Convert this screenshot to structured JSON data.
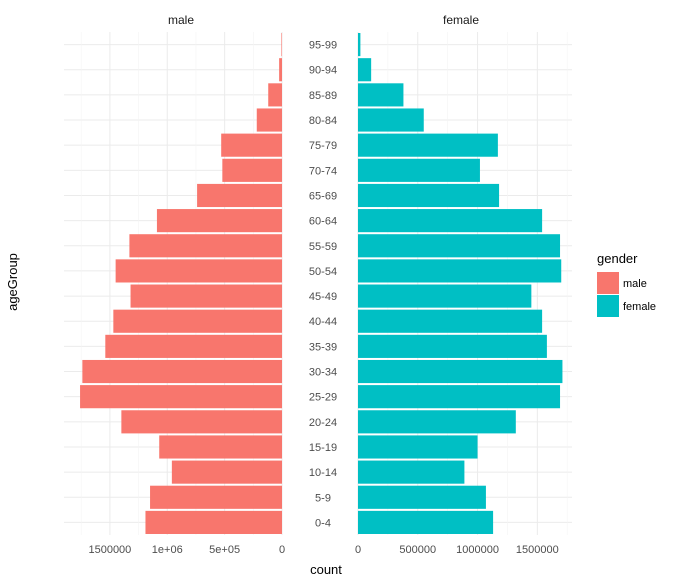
{
  "chart_data": {
    "type": "bar",
    "orientation": "horizontal",
    "layout": "population-pyramid",
    "facets": [
      "male",
      "female"
    ],
    "categories": [
      "0-4",
      "5-9",
      "10-14",
      "15-19",
      "20-24",
      "25-29",
      "30-34",
      "35-39",
      "40-44",
      "45-49",
      "50-54",
      "55-59",
      "60-64",
      "65-69",
      "70-74",
      "75-79",
      "80-84",
      "85-89",
      "90-94",
      "95-99"
    ],
    "series": [
      {
        "name": "male",
        "color": "#F8766D",
        "values": [
          1190000,
          1150000,
          960000,
          1070000,
          1400000,
          1760000,
          1740000,
          1540000,
          1470000,
          1320000,
          1450000,
          1330000,
          1090000,
          740000,
          520000,
          530000,
          220000,
          120000,
          25000,
          5000
        ]
      },
      {
        "name": "female",
        "color": "#00BFC4",
        "values": [
          1130000,
          1070000,
          890000,
          1000000,
          1320000,
          1690000,
          1710000,
          1580000,
          1540000,
          1450000,
          1700000,
          1690000,
          1540000,
          1180000,
          1020000,
          1170000,
          550000,
          380000,
          110000,
          20000
        ]
      }
    ],
    "xlabel": "count",
    "ylabel": "ageGroup",
    "male_axis": {
      "xlim": [
        1900000,
        0
      ],
      "ticks": [
        1500000,
        1000000,
        500000,
        0
      ],
      "tick_labels": [
        "1500000",
        "1e+06",
        "5e+05",
        "0"
      ]
    },
    "female_axis": {
      "xlim": [
        0,
        1790000
      ],
      "ticks": [
        0,
        500000,
        1000000,
        1500000
      ],
      "tick_labels": [
        "0",
        "500000",
        "1000000",
        "1500000"
      ]
    },
    "legend": {
      "title": "gender",
      "position": "right",
      "items": [
        {
          "label": "male",
          "color": "#F8766D"
        },
        {
          "label": "female",
          "color": "#00BFC4"
        }
      ]
    },
    "grid": true
  }
}
